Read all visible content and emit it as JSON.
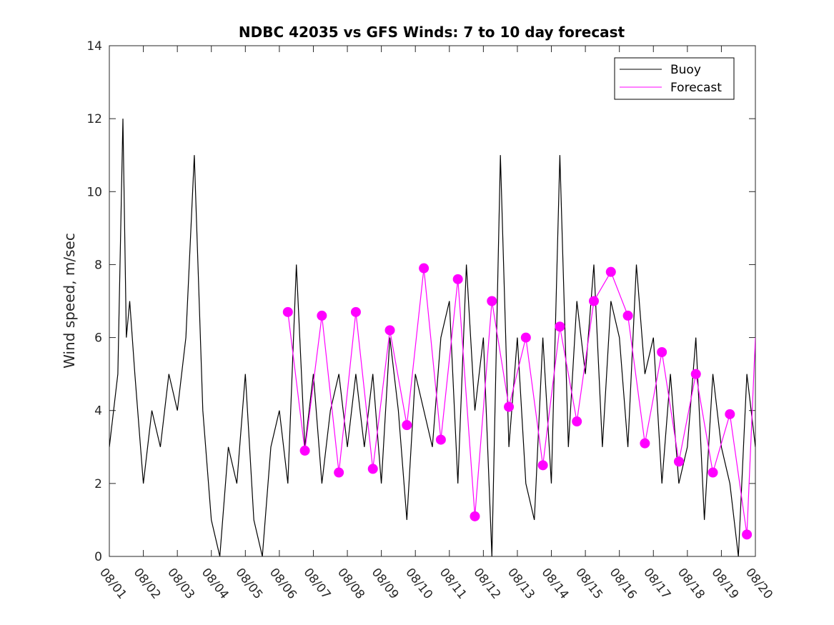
{
  "chart_data": {
    "type": "line",
    "title": "NDBC 42035 vs GFS Winds: 7 to 10 day forecast",
    "xlabel": "",
    "ylabel": "Wind speed, m/sec",
    "xlim": [
      0,
      19
    ],
    "ylim": [
      0,
      14
    ],
    "yticks": [
      0,
      2,
      4,
      6,
      8,
      10,
      12,
      14
    ],
    "categories": [
      "08/01",
      "08/02",
      "08/03",
      "08/04",
      "08/05",
      "08/06",
      "08/07",
      "08/08",
      "08/09",
      "08/10",
      "08/11",
      "08/12",
      "08/13",
      "08/14",
      "08/15",
      "08/16",
      "08/17",
      "08/18",
      "08/19",
      "08/20"
    ],
    "legend": {
      "position": "top-right",
      "entries": [
        "Buoy",
        "Forecast"
      ]
    },
    "colors": {
      "buoy": "#000000",
      "forecast": "#ff00ff"
    },
    "series": [
      {
        "name": "Buoy",
        "x": [
          0.0,
          0.25,
          0.4,
          0.5,
          0.6,
          0.75,
          1.0,
          1.25,
          1.5,
          1.75,
          2.0,
          2.25,
          2.5,
          2.75,
          3.0,
          3.25,
          3.5,
          3.75,
          4.0,
          4.25,
          4.5,
          4.75,
          5.0,
          5.25,
          5.5,
          5.75,
          6.0,
          6.25,
          6.5,
          6.75,
          7.0,
          7.25,
          7.5,
          7.75,
          8.0,
          8.25,
          8.5,
          8.75,
          9.0,
          9.25,
          9.5,
          9.75,
          10.0,
          10.25,
          10.5,
          10.75,
          11.0,
          11.25,
          11.5,
          11.75,
          12.0,
          12.25,
          12.5,
          12.75,
          13.0,
          13.25,
          13.5,
          13.75,
          14.0,
          14.25,
          14.5,
          14.75,
          15.0,
          15.25,
          15.5,
          15.75,
          16.0,
          16.25,
          16.5,
          16.75,
          17.0,
          17.25,
          17.5,
          17.75,
          18.0,
          18.25,
          18.5,
          18.75,
          19.0
        ],
        "values": [
          3,
          5,
          12,
          6,
          7,
          5,
          2,
          4,
          3,
          5,
          4,
          6,
          11,
          4,
          1,
          0,
          3,
          2,
          5,
          1,
          0,
          3,
          4,
          2,
          8,
          3,
          5,
          2,
          4,
          5,
          3,
          5,
          3,
          5,
          2,
          6,
          4,
          1,
          5,
          4,
          3,
          6,
          7,
          2,
          8,
          4,
          6,
          0,
          11,
          3,
          6,
          2,
          1,
          6,
          2,
          11,
          3,
          7,
          5,
          8,
          3,
          7,
          6,
          3,
          8,
          5,
          6,
          2,
          5,
          2,
          3,
          6,
          1,
          5,
          3,
          2,
          0,
          5,
          3
        ]
      },
      {
        "name": "Forecast",
        "x": [
          5.25,
          5.75,
          6.25,
          6.75,
          7.25,
          7.75,
          8.25,
          8.75,
          9.25,
          9.75,
          10.25,
          10.75,
          11.25,
          11.75,
          12.25,
          12.75,
          13.25,
          13.75,
          14.25,
          14.75,
          15.25,
          15.75,
          16.25,
          16.75,
          17.25,
          17.75,
          18.25,
          18.75,
          19.0
        ],
        "values": [
          6.7,
          2.9,
          6.6,
          2.3,
          6.7,
          2.4,
          6.2,
          3.6,
          7.9,
          3.2,
          7.6,
          1.1,
          7.0,
          4.1,
          6.0,
          2.5,
          6.3,
          3.7,
          7.0,
          7.8,
          6.6,
          3.1,
          5.6,
          2.6,
          5.0,
          2.3,
          3.9,
          0.6,
          6.0
        ]
      }
    ],
    "markers": {
      "name": "Forecast points",
      "x": [
        5.25,
        5.75,
        6.25,
        6.75,
        7.25,
        7.75,
        8.25,
        8.75,
        9.25,
        9.75,
        10.25,
        10.75,
        11.25,
        11.75,
        12.25,
        12.75,
        13.25,
        13.75,
        14.25,
        14.75,
        15.25,
        15.75,
        16.25,
        16.75,
        17.25,
        17.75,
        18.25,
        18.75
      ],
      "values": [
        6.7,
        2.9,
        6.6,
        2.3,
        6.7,
        2.4,
        6.2,
        3.6,
        7.9,
        3.2,
        7.6,
        1.1,
        7.0,
        4.1,
        6.0,
        2.5,
        6.3,
        3.7,
        7.0,
        7.8,
        6.6,
        3.1,
        5.6,
        2.6,
        5.0,
        2.3,
        3.9,
        0.6
      ]
    }
  }
}
